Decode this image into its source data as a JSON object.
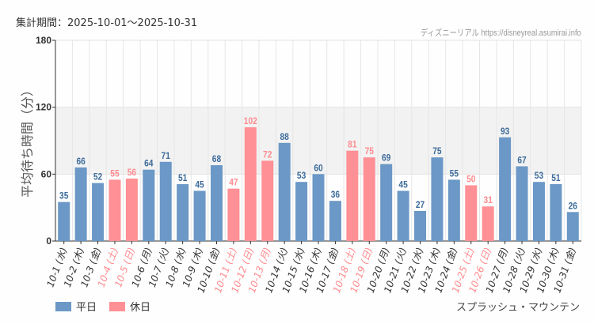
{
  "period_label": "集計期間：2025-10-01〜2025-10-31",
  "credit": "ディズニーリアル https://disneyreal.asumirai.info",
  "attraction": "スプラッシュ・マウンテン",
  "colors": {
    "weekday": "#6b98c6",
    "holiday": "#ff9095",
    "holiday_text": "#ff8a8f",
    "band": "#f2f2f2"
  },
  "chart_data": {
    "type": "bar",
    "ylabel": "平均待ち時間（分）",
    "ylim": [
      0,
      180
    ],
    "yticks": [
      "0",
      "60",
      "120",
      "180"
    ],
    "grid": true,
    "legend_position": "bottom-left",
    "legend": [
      {
        "name": "平日",
        "kind": "weekday"
      },
      {
        "name": "休日",
        "kind": "holiday"
      }
    ],
    "categories": [
      "10-1 (水)",
      "10-2 (木)",
      "10-3 (金)",
      "10-4 (土)",
      "10-5 (日)",
      "10-6 (月)",
      "10-7 (火)",
      "10-8 (水)",
      "10-9 (木)",
      "10-10 (金)",
      "10-11 (土)",
      "10-12 (日)",
      "10-13 (月)",
      "10-14 (火)",
      "10-15 (水)",
      "10-16 (木)",
      "10-17 (金)",
      "10-18 (土)",
      "10-19 (日)",
      "10-20 (月)",
      "10-21 (火)",
      "10-22 (水)",
      "10-23 (木)",
      "10-24 (金)",
      "10-25 (土)",
      "10-26 (日)",
      "10-27 (月)",
      "10-28 (火)",
      "10-29 (水)",
      "10-30 (木)",
      "10-31 (金)"
    ],
    "values": [
      35,
      66,
      52,
      55,
      56,
      64,
      71,
      51,
      45,
      68,
      47,
      102,
      72,
      88,
      53,
      60,
      36,
      81,
      75,
      69,
      45,
      27,
      75,
      55,
      50,
      31,
      93,
      67,
      53,
      51,
      26
    ],
    "holiday": [
      false,
      false,
      false,
      true,
      true,
      false,
      false,
      false,
      false,
      false,
      true,
      true,
      true,
      false,
      false,
      false,
      false,
      true,
      true,
      false,
      false,
      false,
      false,
      false,
      true,
      true,
      false,
      false,
      false,
      false,
      false
    ]
  }
}
